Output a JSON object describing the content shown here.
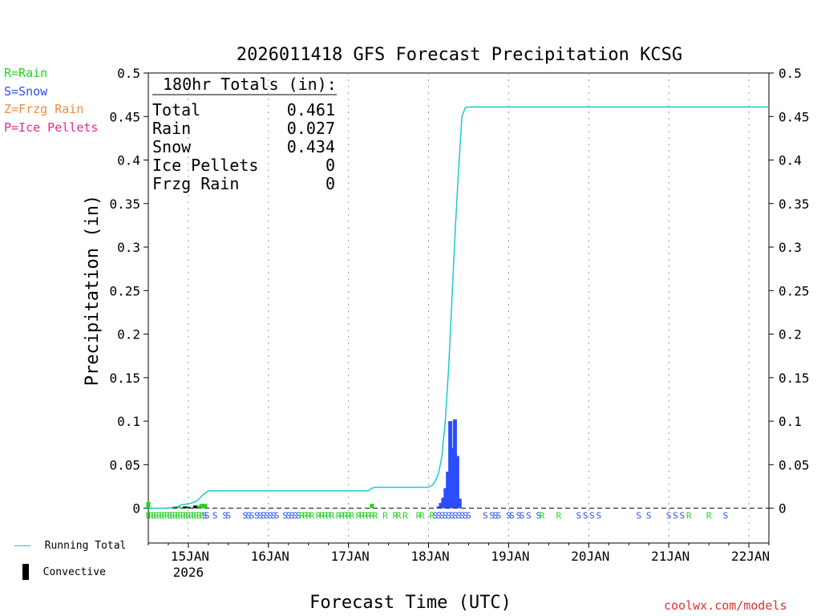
{
  "ptype_legend": [
    {
      "code": "R",
      "label": "R=Rain",
      "color": "#22d422"
    },
    {
      "code": "S",
      "label": "S=Snow",
      "color": "#2b4dff"
    },
    {
      "code": "Z",
      "label": "Z=Frzg Rain",
      "color": "#f08c3c"
    },
    {
      "code": "P",
      "label": "P=Ice Pellets",
      "color": "#e8288a"
    }
  ],
  "footer": {
    "running_total_label": "Running Total",
    "convective_label": "Convective",
    "credit": "coolwx.com/models"
  },
  "chart_data": {
    "type": "bar",
    "title": "2026011418 GFS Forecast Precipitation KCSG",
    "ylabel": "Precipitation (in)",
    "xlabel": "Forecast Time (UTC)",
    "ylim": [
      -0.04,
      0.5
    ],
    "xlim": [
      -6,
      180
    ],
    "grid": "vertical dotted at day boundaries",
    "yticks": [
      0,
      0.05,
      0.1,
      0.15,
      0.2,
      0.25,
      0.3,
      0.35,
      0.4,
      0.45,
      0.5
    ],
    "ytick_labels": [
      "0",
      "0.05",
      "0.1",
      "0.15",
      "0.2",
      "0.25",
      "0.3",
      "0.35",
      "0.4",
      "0.45",
      "0.5"
    ],
    "xticks": [
      {
        "hour": 6,
        "label": "15JAN",
        "sublabel": "2026"
      },
      {
        "hour": 30,
        "label": "16JAN"
      },
      {
        "hour": 54,
        "label": "17JAN"
      },
      {
        "hour": 78,
        "label": "18JAN"
      },
      {
        "hour": 102,
        "label": "19JAN"
      },
      {
        "hour": 126,
        "label": "20JAN"
      },
      {
        "hour": 150,
        "label": "21JAN"
      },
      {
        "hour": 174,
        "label": "22JAN"
      }
    ],
    "totals": {
      "heading": "180hr Totals (in):",
      "rows": [
        {
          "label": "Total",
          "value": "0.461"
        },
        {
          "label": "Rain",
          "value": "0.027"
        },
        {
          "label": "Snow",
          "value": "0.434"
        },
        {
          "label": "Ice Pellets",
          "value": "0"
        },
        {
          "label": "Frzg Rain",
          "value": "0"
        }
      ]
    },
    "series": [
      {
        "name": "Running Total",
        "type": "line",
        "color": "#1ec8c8",
        "x": [
          -6,
          0,
          3,
          4,
          6,
          8,
          9,
          10,
          12,
          60,
          61,
          62,
          78,
          79,
          80,
          81,
          82,
          83,
          84,
          85,
          86,
          87,
          88,
          89,
          90,
          180
        ],
        "y": [
          0,
          0,
          0.002,
          0.004,
          0.005,
          0.007,
          0.01,
          0.014,
          0.02,
          0.02,
          0.023,
          0.024,
          0.024,
          0.026,
          0.031,
          0.04,
          0.06,
          0.1,
          0.16,
          0.24,
          0.32,
          0.39,
          0.45,
          0.46,
          0.461,
          0.461
        ]
      },
      {
        "name": "Rain",
        "type": "bar",
        "color": "#22d422",
        "x": [
          -6,
          0,
          2,
          3,
          4,
          6,
          9,
          10,
          11,
          61
        ],
        "y": [
          0.007,
          0.001,
          0.001,
          0.002,
          0.001,
          0.002,
          0.003,
          0.005,
          0.005,
          0.005
        ]
      },
      {
        "name": "Snow",
        "type": "bar",
        "color": "#2b4dff",
        "x": [
          81,
          81.7,
          82.4,
          83.1,
          83.8,
          84.5,
          85.2,
          85.9,
          86.6,
          87.3
        ],
        "y": [
          0.002,
          0.006,
          0.012,
          0.023,
          0.042,
          0.1,
          0.069,
          0.102,
          0.06,
          0.011
        ]
      },
      {
        "name": "Convective",
        "type": "bar",
        "color": "#000000",
        "x": [
          1,
          2,
          5,
          6,
          8
        ],
        "y": [
          0.001,
          0.002,
          0.002,
          0.001,
          0.003
        ]
      }
    ],
    "ptype_markers": [
      {
        "x": -6,
        "c": "R"
      },
      {
        "x": -5.2,
        "c": "R"
      },
      {
        "x": -4.4,
        "c": "R"
      },
      {
        "x": -3.6,
        "c": "R"
      },
      {
        "x": -2.8,
        "c": "R"
      },
      {
        "x": -2,
        "c": "R"
      },
      {
        "x": -1.2,
        "c": "R"
      },
      {
        "x": -0.4,
        "c": "R"
      },
      {
        "x": 0.4,
        "c": "R"
      },
      {
        "x": 1.2,
        "c": "R"
      },
      {
        "x": 2,
        "c": "R"
      },
      {
        "x": 2.8,
        "c": "R"
      },
      {
        "x": 3.6,
        "c": "R"
      },
      {
        "x": 4.4,
        "c": "R"
      },
      {
        "x": 5.2,
        "c": "R"
      },
      {
        "x": 6,
        "c": "R"
      },
      {
        "x": 6.8,
        "c": "R"
      },
      {
        "x": 7.6,
        "c": "R"
      },
      {
        "x": 8.4,
        "c": "R"
      },
      {
        "x": 9.2,
        "c": "R"
      },
      {
        "x": 10,
        "c": "R"
      },
      {
        "x": 10.8,
        "c": "S"
      },
      {
        "x": 11.6,
        "c": "S"
      },
      {
        "x": 14,
        "c": "S"
      },
      {
        "x": 17,
        "c": "S"
      },
      {
        "x": 18,
        "c": "S"
      },
      {
        "x": 23,
        "c": "S"
      },
      {
        "x": 24,
        "c": "S"
      },
      {
        "x": 25,
        "c": "S"
      },
      {
        "x": 26.5,
        "c": "S"
      },
      {
        "x": 27.5,
        "c": "S"
      },
      {
        "x": 28.5,
        "c": "S"
      },
      {
        "x": 29.5,
        "c": "S"
      },
      {
        "x": 30.5,
        "c": "S"
      },
      {
        "x": 31.5,
        "c": "S"
      },
      {
        "x": 32.5,
        "c": "S"
      },
      {
        "x": 35,
        "c": "S"
      },
      {
        "x": 36,
        "c": "S"
      },
      {
        "x": 37,
        "c": "S"
      },
      {
        "x": 38,
        "c": "S"
      },
      {
        "x": 39,
        "c": "S"
      },
      {
        "x": 40,
        "c": "R"
      },
      {
        "x": 41,
        "c": "R"
      },
      {
        "x": 42,
        "c": "R"
      },
      {
        "x": 43,
        "c": "R"
      },
      {
        "x": 45,
        "c": "R"
      },
      {
        "x": 46,
        "c": "R"
      },
      {
        "x": 47,
        "c": "R"
      },
      {
        "x": 48,
        "c": "R"
      },
      {
        "x": 49,
        "c": "R"
      },
      {
        "x": 51,
        "c": "R"
      },
      {
        "x": 52,
        "c": "R"
      },
      {
        "x": 53,
        "c": "R"
      },
      {
        "x": 54,
        "c": "R"
      },
      {
        "x": 55,
        "c": "R"
      },
      {
        "x": 57,
        "c": "R"
      },
      {
        "x": 58,
        "c": "R"
      },
      {
        "x": 59,
        "c": "R"
      },
      {
        "x": 60,
        "c": "R"
      },
      {
        "x": 61,
        "c": "R"
      },
      {
        "x": 62,
        "c": "R"
      },
      {
        "x": 65,
        "c": "R"
      },
      {
        "x": 68,
        "c": "R"
      },
      {
        "x": 69,
        "c": "R"
      },
      {
        "x": 71,
        "c": "R"
      },
      {
        "x": 75,
        "c": "R"
      },
      {
        "x": 76,
        "c": "R"
      },
      {
        "x": 79,
        "c": "R"
      },
      {
        "x": 80,
        "c": "S"
      },
      {
        "x": 81,
        "c": "S"
      },
      {
        "x": 82,
        "c": "S"
      },
      {
        "x": 83,
        "c": "S"
      },
      {
        "x": 84,
        "c": "S"
      },
      {
        "x": 85,
        "c": "S"
      },
      {
        "x": 86,
        "c": "S"
      },
      {
        "x": 87,
        "c": "S"
      },
      {
        "x": 88,
        "c": "S"
      },
      {
        "x": 89,
        "c": "S"
      },
      {
        "x": 90,
        "c": "S"
      },
      {
        "x": 95,
        "c": "S"
      },
      {
        "x": 97,
        "c": "S"
      },
      {
        "x": 98,
        "c": "S"
      },
      {
        "x": 99,
        "c": "S"
      },
      {
        "x": 102,
        "c": "S"
      },
      {
        "x": 103,
        "c": "S"
      },
      {
        "x": 105,
        "c": "S"
      },
      {
        "x": 106,
        "c": "S"
      },
      {
        "x": 108,
        "c": "S"
      },
      {
        "x": 111,
        "c": "S"
      },
      {
        "x": 112,
        "c": "R"
      },
      {
        "x": 117,
        "c": "R"
      },
      {
        "x": 123,
        "c": "S"
      },
      {
        "x": 125,
        "c": "S"
      },
      {
        "x": 127,
        "c": "S"
      },
      {
        "x": 129,
        "c": "S"
      },
      {
        "x": 141,
        "c": "S"
      },
      {
        "x": 144,
        "c": "S"
      },
      {
        "x": 150,
        "c": "S"
      },
      {
        "x": 152,
        "c": "S"
      },
      {
        "x": 154,
        "c": "S"
      },
      {
        "x": 156,
        "c": "R"
      },
      {
        "x": 162,
        "c": "R"
      },
      {
        "x": 167,
        "c": "S"
      }
    ]
  }
}
